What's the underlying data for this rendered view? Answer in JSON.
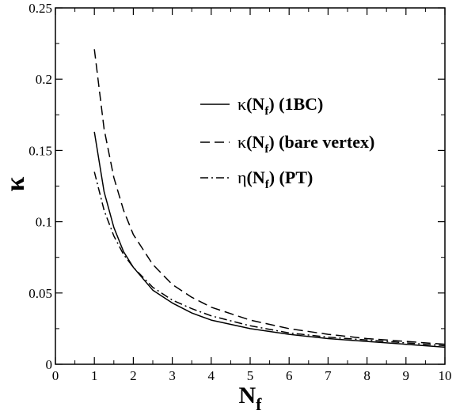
{
  "chart_data": {
    "type": "line",
    "xlabel": "N",
    "xlabel_sub": "f",
    "ylabel": "κ",
    "xlim": [
      0,
      10
    ],
    "ylim": [
      0,
      0.25
    ],
    "xticks": [
      0,
      1,
      2,
      3,
      4,
      5,
      6,
      7,
      8,
      9,
      10
    ],
    "yticks": [
      0,
      0.05,
      0.1,
      0.15,
      0.2,
      0.25
    ],
    "xtick_labels": [
      "0",
      "1",
      "2",
      "3",
      "4",
      "5",
      "6",
      "7",
      "8",
      "9",
      "10"
    ],
    "ytick_labels": [
      "0",
      "0.05",
      "0.1",
      "0.15",
      "0.2",
      "0.25"
    ],
    "legend_position": "top-right",
    "series": [
      {
        "name": "κ(N_f) (1BC)",
        "legend": {
          "sym": "κ",
          "base": "(N",
          "sub": "f",
          "rest": ") (1BC)"
        },
        "style": "solid",
        "x": [
          1.0,
          1.25,
          1.5,
          1.75,
          2.0,
          2.5,
          3.0,
          3.5,
          4.0,
          5.0,
          6.0,
          7.0,
          8.0,
          9.0,
          10.0
        ],
        "y": [
          0.163,
          0.121,
          0.096,
          0.079,
          0.068,
          0.052,
          0.043,
          0.036,
          0.031,
          0.025,
          0.021,
          0.018,
          0.016,
          0.014,
          0.012
        ]
      },
      {
        "name": "κ(N_f) (bare vertex)",
        "legend": {
          "sym": "κ",
          "base": "(N",
          "sub": "f",
          "rest": ") (bare vertex)"
        },
        "style": "dashed",
        "x": [
          1.0,
          1.25,
          1.5,
          1.75,
          2.0,
          2.5,
          3.0,
          3.5,
          4.0,
          5.0,
          6.0,
          7.0,
          8.0,
          9.0,
          10.0
        ],
        "y": [
          0.221,
          0.165,
          0.131,
          0.108,
          0.091,
          0.07,
          0.056,
          0.047,
          0.04,
          0.031,
          0.025,
          0.021,
          0.018,
          0.016,
          0.014
        ]
      },
      {
        "name": "η(N_f) (PT)",
        "legend": {
          "sym": "η",
          "base": "(N",
          "sub": "f",
          "rest": ") (PT)"
        },
        "style": "dashdot",
        "x": [
          1.0,
          1.25,
          1.5,
          1.75,
          2.0,
          2.5,
          3.0,
          3.5,
          4.0,
          5.0,
          6.0,
          7.0,
          8.0,
          9.0,
          10.0
        ],
        "y": [
          0.135,
          0.108,
          0.09,
          0.077,
          0.068,
          0.054,
          0.045,
          0.039,
          0.034,
          0.027,
          0.022,
          0.019,
          0.017,
          0.015,
          0.013
        ]
      }
    ]
  }
}
